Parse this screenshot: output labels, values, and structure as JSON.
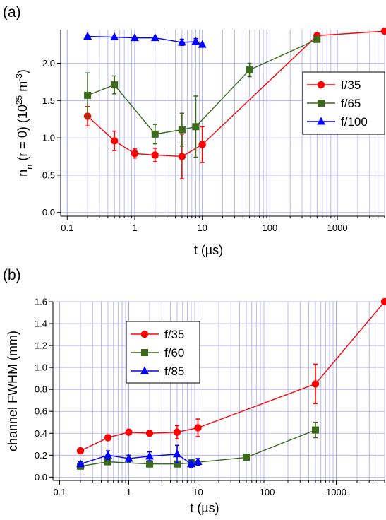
{
  "chart_data": [
    {
      "type": "scatter",
      "panel_label": "(a)",
      "xlabel": "t (µs)",
      "ylabel": "n_n (r = 0) (10^25 m^-3)",
      "ylabel_parts": {
        "main": "n",
        "sub": "n",
        "mid": " (r = 0) (10",
        "sup": "25",
        "unit": " m",
        "unitsup": "-3",
        "close": ")"
      },
      "xscale": "log",
      "xlim": [
        0.08,
        5000
      ],
      "ylim": [
        -0.05,
        2.45
      ],
      "xticks": [
        0.1,
        1,
        10,
        100,
        1000
      ],
      "xtick_labels": [
        "0.1",
        "1",
        "10",
        "100",
        "1000"
      ],
      "yticks": [
        0.0,
        0.5,
        1.0,
        1.5,
        2.0
      ],
      "ytick_labels": [
        "0.0",
        "0.5",
        "1.0",
        "1.5",
        "2.0"
      ],
      "grid": true,
      "legend_position": "right",
      "series": [
        {
          "name": "f/35",
          "color": "#ff0000",
          "marker": "circle",
          "x": [
            0.2,
            0.5,
            1,
            2,
            5,
            10,
            500,
            5000
          ],
          "y": [
            1.29,
            0.96,
            0.79,
            0.77,
            0.75,
            0.91,
            2.37,
            2.43
          ],
          "err": [
            0.13,
            0.13,
            0.06,
            0.09,
            0.3,
            0.24,
            0,
            0
          ]
        },
        {
          "name": "f/65",
          "color": "#3a6a1a",
          "marker": "square",
          "x": [
            0.2,
            0.5,
            2,
            5,
            8,
            50,
            500
          ],
          "y": [
            1.57,
            1.71,
            1.05,
            1.11,
            1.15,
            1.91,
            2.32
          ],
          "err": [
            0.3,
            0.12,
            0.13,
            0.22,
            0.41,
            0.09,
            0
          ]
        },
        {
          "name": "f/100",
          "color": "#0000ff",
          "marker": "triangle",
          "x": [
            0.2,
            0.5,
            1,
            2,
            5,
            8,
            10
          ],
          "y": [
            2.36,
            2.35,
            2.34,
            2.34,
            2.28,
            2.29,
            2.25
          ],
          "err": [
            0,
            0,
            0,
            0,
            0.04,
            0.04,
            0
          ]
        }
      ]
    },
    {
      "type": "scatter",
      "panel_label": "(b)",
      "xlabel": "t (µs)",
      "ylabel": "channel FWHM (mm)",
      "xscale": "log",
      "xlim": [
        0.08,
        5000
      ],
      "ylim": [
        -0.03,
        1.6
      ],
      "xticks": [
        0.1,
        1,
        10,
        100,
        1000
      ],
      "xtick_labels": [
        "0.1",
        "1",
        "10",
        "100",
        "1000"
      ],
      "yticks": [
        0.0,
        0.2,
        0.4,
        0.6,
        0.8,
        1.0,
        1.2,
        1.4,
        1.6
      ],
      "ytick_labels": [
        "0.0",
        "0.2",
        "0.4",
        "0.6",
        "0.8",
        "1.0",
        "1.2",
        "1.4",
        "1.6"
      ],
      "grid": true,
      "legend_position": "top-left",
      "series": [
        {
          "name": "f/35",
          "color": "#ff0000",
          "marker": "circle",
          "x": [
            0.2,
            0.5,
            1,
            2,
            5,
            10,
            500,
            5000
          ],
          "y": [
            0.24,
            0.36,
            0.41,
            0.4,
            0.41,
            0.45,
            0.85,
            1.6
          ],
          "err": [
            0,
            0.02,
            0.02,
            0.01,
            0.06,
            0.08,
            0.18,
            0
          ]
        },
        {
          "name": "f/60",
          "color": "#3a6a1a",
          "marker": "square",
          "x": [
            0.2,
            0.5,
            2,
            5,
            8,
            50,
            500
          ],
          "y": [
            0.1,
            0.14,
            0.12,
            0.12,
            0.13,
            0.18,
            0.43
          ],
          "err": [
            0,
            0.02,
            0.02,
            0.02,
            0.03,
            0.02,
            0.07
          ]
        },
        {
          "name": "f/85",
          "color": "#0000ff",
          "marker": "triangle",
          "x": [
            0.2,
            0.5,
            1,
            2,
            5,
            8,
            10
          ],
          "y": [
            0.12,
            0.2,
            0.17,
            0.19,
            0.21,
            0.12,
            0.14
          ],
          "err": [
            0.02,
            0.04,
            0.03,
            0.04,
            0.08,
            0.03,
            0.03
          ]
        }
      ]
    }
  ]
}
